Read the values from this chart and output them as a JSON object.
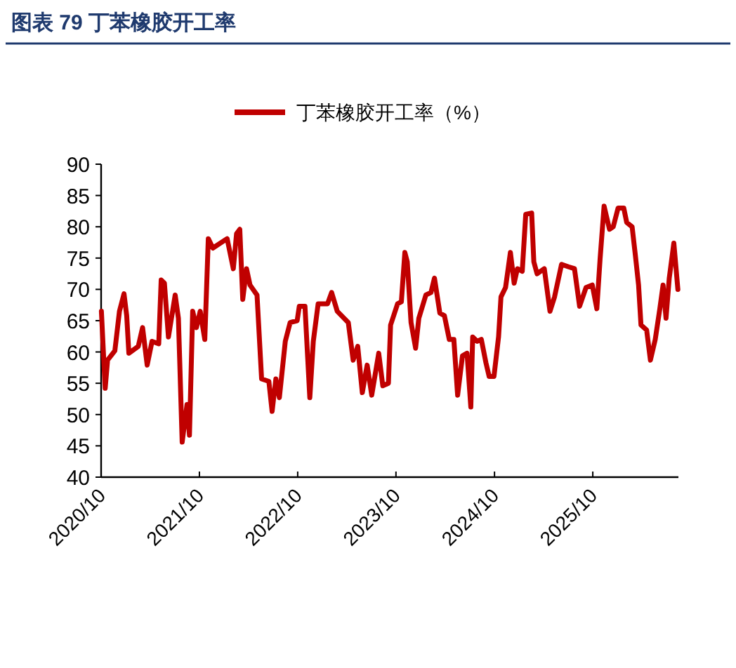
{
  "chart_data": {
    "type": "line",
    "title": "图表 79 丁苯橡胶开工率",
    "legend": "top",
    "line_style": "solid",
    "marker": "none",
    "xlim": [
      "2020-10-01",
      "2026-08-15"
    ],
    "xticks": [
      {
        "value": "2020-10-01",
        "label": "2020/10"
      },
      {
        "value": "2021-10-01",
        "label": "2021/10"
      },
      {
        "value": "2022-10-01",
        "label": "2022/10"
      },
      {
        "value": "2023-10-01",
        "label": "2023/10"
      },
      {
        "value": "2024-10-01",
        "label": "2024/10"
      },
      {
        "value": "2025-10-01",
        "label": "2025/10"
      }
    ],
    "ylim": [
      40,
      90
    ],
    "yticks": [
      40,
      45,
      50,
      55,
      60,
      65,
      70,
      75,
      80,
      85,
      90
    ],
    "series": [
      {
        "name": "丁苯橡胶开工率（%）",
        "color": "#c00000",
        "x": [
          "2020-10-02",
          "2020-10-16",
          "2020-10-25",
          "2020-11-21",
          "2020-12-08",
          "2020-12-25",
          "2021-01-04",
          "2021-01-12",
          "2021-02-16",
          "2021-03-04",
          "2021-03-21",
          "2021-04-08",
          "2021-05-03",
          "2021-05-12",
          "2021-05-24",
          "2021-06-08",
          "2021-07-03",
          "2021-07-15",
          "2021-07-29",
          "2021-08-16",
          "2021-08-25",
          "2021-09-06",
          "2021-09-20",
          "2021-10-04",
          "2021-10-21",
          "2021-11-03",
          "2021-11-20",
          "2022-01-12",
          "2022-02-04",
          "2022-02-16",
          "2022-02-28",
          "2022-03-11",
          "2022-03-25",
          "2022-04-07",
          "2022-05-03",
          "2022-05-20",
          "2022-06-16",
          "2022-06-28",
          "2022-07-12",
          "2022-07-25",
          "2022-08-16",
          "2022-09-03",
          "2022-09-29",
          "2022-10-07",
          "2022-10-28",
          "2022-11-15",
          "2022-11-28",
          "2022-12-16",
          "2023-01-20",
          "2023-02-04",
          "2023-02-25",
          "2023-04-07",
          "2023-04-25",
          "2023-05-12",
          "2023-05-29",
          "2023-06-16",
          "2023-07-03",
          "2023-07-29",
          "2023-08-13",
          "2023-09-03",
          "2023-09-11",
          "2023-10-07",
          "2023-10-21",
          "2023-11-03",
          "2023-11-12",
          "2023-11-26",
          "2023-12-13",
          "2023-12-25",
          "2024-01-20",
          "2024-02-08",
          "2024-02-21",
          "2024-03-12",
          "2024-03-29",
          "2024-04-16",
          "2024-05-03",
          "2024-05-17",
          "2024-06-04",
          "2024-06-21",
          "2024-07-05",
          "2024-07-12",
          "2024-07-29",
          "2024-08-13",
          "2024-08-30",
          "2024-09-11",
          "2024-09-29",
          "2024-10-16",
          "2024-10-25",
          "2024-11-11",
          "2024-11-29",
          "2024-12-13",
          "2024-12-25",
          "2025-01-12",
          "2025-01-25",
          "2025-02-16",
          "2025-02-24",
          "2025-03-08",
          "2025-04-04",
          "2025-04-25",
          "2025-05-12",
          "2025-06-07",
          "2025-07-03",
          "2025-07-25",
          "2025-08-13",
          "2025-09-06",
          "2025-09-29",
          "2025-10-16",
          "2025-10-28",
          "2025-11-12",
          "2025-12-02",
          "2025-12-16",
          "2026-01-03",
          "2026-01-24",
          "2026-02-04",
          "2026-02-24",
          "2026-03-08",
          "2026-03-20",
          "2026-03-29",
          "2026-04-19",
          "2026-05-03",
          "2026-05-21",
          "2026-06-07",
          "2026-06-19",
          "2026-06-30",
          "2026-07-12",
          "2026-07-29",
          "2026-08-13"
        ],
        "values": [
          66.5,
          54.2,
          58.7,
          60.2,
          66.5,
          69.3,
          65.8,
          59.8,
          60.9,
          63.9,
          57.9,
          61.7,
          61.3,
          71.5,
          71.0,
          62.4,
          69.1,
          65.4,
          45.6,
          51.6,
          46.7,
          66.5,
          63.9,
          66.5,
          62.0,
          78.1,
          76.6,
          78.1,
          73.3,
          78.9,
          79.6,
          68.4,
          73.3,
          70.7,
          69.1,
          55.7,
          55.3,
          50.5,
          55.7,
          52.7,
          61.7,
          64.7,
          65.0,
          67.3,
          67.3,
          52.7,
          61.7,
          67.7,
          67.7,
          69.5,
          66.5,
          64.7,
          58.7,
          60.9,
          53.5,
          57.9,
          53.1,
          59.8,
          54.6,
          55.0,
          64.3,
          67.7,
          68.0,
          75.9,
          74.4,
          64.7,
          60.6,
          65.4,
          69.1,
          69.5,
          71.8,
          66.2,
          65.8,
          62.0,
          62.0,
          53.1,
          59.4,
          59.8,
          51.2,
          62.4,
          61.7,
          62.0,
          58.3,
          56.1,
          56.1,
          62.4,
          68.8,
          70.3,
          75.9,
          71.0,
          73.3,
          72.9,
          82.0,
          82.2,
          74.4,
          72.5,
          73.3,
          66.5,
          68.8,
          74.0,
          73.6,
          73.3,
          67.3,
          70.3,
          70.7,
          66.9,
          74.8,
          83.3,
          79.6,
          80.0,
          83.0,
          83.0,
          80.7,
          80.0,
          75.5,
          70.7,
          64.3,
          63.5,
          58.7,
          62.0,
          66.9,
          70.7,
          65.4,
          71.8,
          77.4,
          70.0
        ]
      }
    ]
  }
}
